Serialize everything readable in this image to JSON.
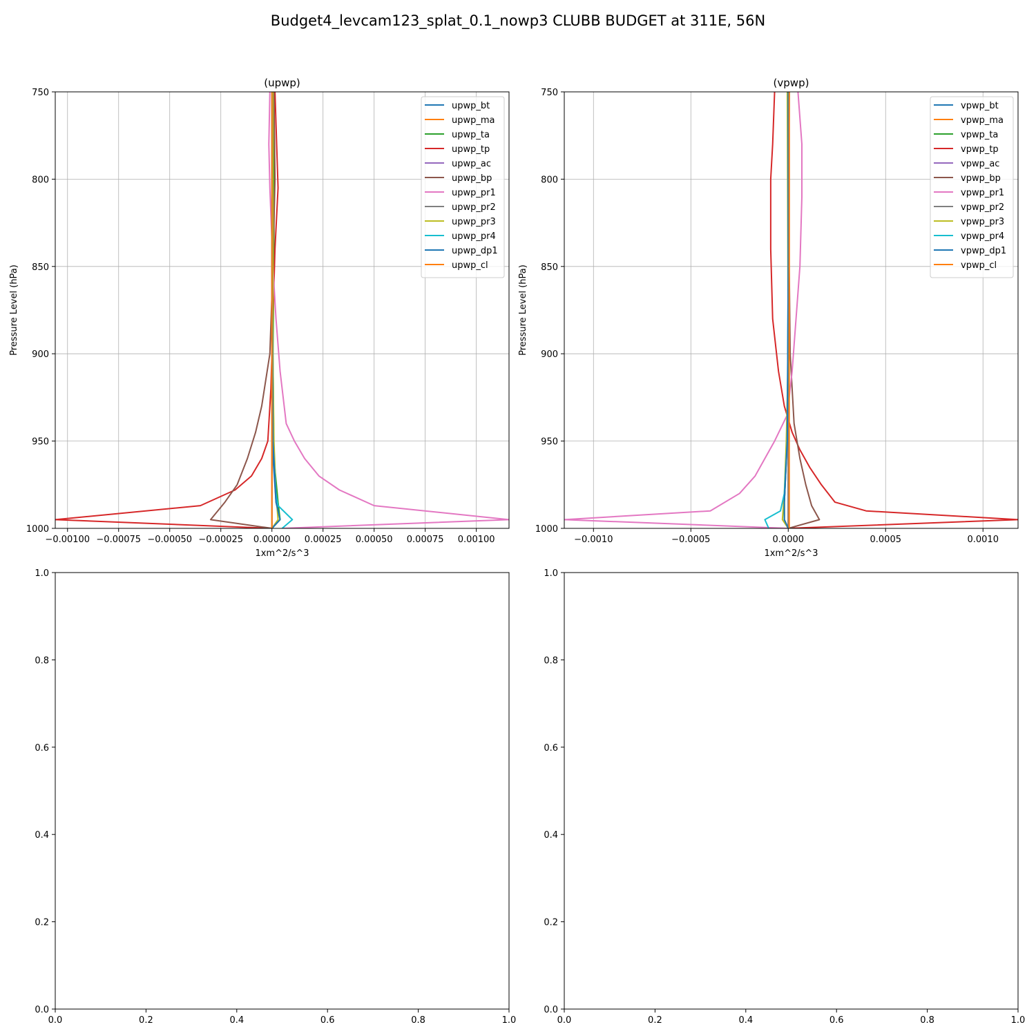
{
  "figure": {
    "title": "Budget4_levcam123_splat_0.1_nowp3 CLUBB BUDGET at 311E, 56N"
  },
  "chart_data": [
    {
      "type": "line",
      "title": "(upwp)",
      "xlabel": "1xm^2/s^3",
      "ylabel": "Pressure Level (hPa)",
      "xlim": [
        -0.00106,
        0.00116
      ],
      "ylim": [
        1000,
        750
      ],
      "x_ticks": [
        -0.001,
        -0.00075,
        -0.0005,
        -0.00025,
        0,
        0.00025,
        0.0005,
        0.00075,
        0.001
      ],
      "x_tick_labels": [
        "−0.00100",
        "−0.00075",
        "−0.00050",
        "−0.00025",
        "0.00000",
        "0.00025",
        "0.00050",
        "0.00075",
        "0.00100"
      ],
      "y_ticks": [
        750,
        800,
        850,
        900,
        950,
        1000
      ],
      "y_tick_labels": [
        "750",
        "800",
        "850",
        "900",
        "950",
        "1000"
      ],
      "grid": true,
      "legend_position": "top-right",
      "series": [
        {
          "name": "upwp_bt",
          "color": "#1f77b4",
          "points": [
            [
              1e-05,
              750
            ],
            [
              5e-06,
              850
            ],
            [
              0,
              900
            ],
            [
              0,
              950
            ],
            [
              2e-05,
              985
            ],
            [
              4e-05,
              995
            ],
            [
              0,
              1000
            ]
          ]
        },
        {
          "name": "upwp_ma",
          "color": "#ff7f0e",
          "points": [
            [
              0,
              750
            ],
            [
              0,
              1000
            ]
          ]
        },
        {
          "name": "upwp_ta",
          "color": "#2ca02c",
          "points": [
            [
              1e-05,
              750
            ],
            [
              1e-05,
              850
            ],
            [
              5e-06,
              900
            ],
            [
              1e-05,
              960
            ],
            [
              3e-05,
              985
            ],
            [
              4e-05,
              995
            ],
            [
              0,
              1000
            ]
          ]
        },
        {
          "name": "upwp_tp",
          "color": "#d62728",
          "points": [
            [
              1.5e-05,
              750
            ],
            [
              3e-05,
              805
            ],
            [
              1.5e-05,
              840
            ],
            [
              5e-06,
              880
            ],
            [
              -5e-06,
              920
            ],
            [
              -2e-05,
              950
            ],
            [
              -5e-05,
              960
            ],
            [
              -0.0001,
              970
            ],
            [
              -0.00018,
              978
            ],
            [
              -0.00035,
              987
            ],
            [
              -0.00106,
              995
            ],
            [
              0,
              1000
            ]
          ]
        },
        {
          "name": "upwp_ac",
          "color": "#9467bd",
          "points": [
            [
              0,
              750
            ],
            [
              0,
              1000
            ]
          ]
        },
        {
          "name": "upwp_bp",
          "color": "#8c564b",
          "points": [
            [
              1e-05,
              750
            ],
            [
              1.5e-05,
              800
            ],
            [
              5e-06,
              850
            ],
            [
              -1e-05,
              900
            ],
            [
              -5e-05,
              930
            ],
            [
              -8e-05,
              945
            ],
            [
              -0.00012,
              960
            ],
            [
              -0.00017,
              975
            ],
            [
              -0.00023,
              985
            ],
            [
              -0.0003,
              995
            ],
            [
              0,
              1000
            ]
          ]
        },
        {
          "name": "upwp_pr1",
          "color": "#e377c2",
          "points": [
            [
              -1e-05,
              750
            ],
            [
              -1.5e-05,
              780
            ],
            [
              -1e-05,
              805
            ],
            [
              5e-06,
              850
            ],
            [
              2e-05,
              880
            ],
            [
              4e-05,
              910
            ],
            [
              7e-05,
              940
            ],
            [
              0.00011,
              950
            ],
            [
              0.00016,
              960
            ],
            [
              0.00023,
              970
            ],
            [
              0.00033,
              978
            ],
            [
              0.0005,
              987
            ],
            [
              0.00116,
              995
            ],
            [
              5e-05,
              1000
            ]
          ]
        },
        {
          "name": "upwp_pr2",
          "color": "#7f7f7f",
          "points": [
            [
              0,
              750
            ],
            [
              0,
              1000
            ]
          ]
        },
        {
          "name": "upwp_pr3",
          "color": "#bcbd22",
          "points": [
            [
              5e-06,
              750
            ],
            [
              5e-06,
              900
            ],
            [
              1e-05,
              950
            ],
            [
              2e-05,
              980
            ],
            [
              3e-05,
              995
            ],
            [
              0,
              1000
            ]
          ]
        },
        {
          "name": "upwp_pr4",
          "color": "#17becf",
          "points": [
            [
              0,
              750
            ],
            [
              0,
              850
            ],
            [
              5e-06,
              950
            ],
            [
              2e-05,
              980
            ],
            [
              3e-05,
              987
            ],
            [
              0.0001,
              995
            ],
            [
              5e-05,
              1000
            ]
          ]
        },
        {
          "name": "upwp_dp1",
          "color": "#1f77b4",
          "points": [
            [
              0,
              750
            ],
            [
              0,
              850
            ],
            [
              5e-06,
              950
            ],
            [
              2e-05,
              985
            ],
            [
              4e-05,
              995
            ],
            [
              0,
              1000
            ]
          ]
        },
        {
          "name": "upwp_cl",
          "color": "#ff7f0e",
          "points": [
            [
              0,
              750
            ],
            [
              0,
              1000
            ]
          ]
        }
      ]
    },
    {
      "type": "line",
      "title": "(vpwp)",
      "xlabel": "1xm^2/s^3",
      "ylabel": "Pressure Level (hPa)",
      "xlim": [
        -0.00115,
        0.00118
      ],
      "ylim": [
        1000,
        750
      ],
      "x_ticks": [
        -0.001,
        -0.0005,
        0,
        0.0005,
        0.001
      ],
      "x_tick_labels": [
        "−0.0010",
        "−0.0005",
        "0.0000",
        "0.0005",
        "0.0010"
      ],
      "y_ticks": [
        750,
        800,
        850,
        900,
        950,
        1000
      ],
      "y_tick_labels": [
        "750",
        "800",
        "850",
        "900",
        "950",
        "1000"
      ],
      "grid": true,
      "legend_position": "top-right",
      "series": [
        {
          "name": "vpwp_bt",
          "color": "#1f77b4",
          "points": [
            [
              5e-06,
              750
            ],
            [
              0,
              900
            ],
            [
              -5e-06,
              950
            ],
            [
              -2e-05,
              985
            ],
            [
              -2e-05,
              995
            ],
            [
              0,
              1000
            ]
          ]
        },
        {
          "name": "vpwp_ma",
          "color": "#ff7f0e",
          "points": [
            [
              0,
              750
            ],
            [
              0,
              1000
            ]
          ]
        },
        {
          "name": "vpwp_ta",
          "color": "#2ca02c",
          "points": [
            [
              5e-06,
              750
            ],
            [
              0,
              900
            ],
            [
              -1e-05,
              960
            ],
            [
              -2e-05,
              985
            ],
            [
              -2e-05,
              995
            ],
            [
              0,
              1000
            ]
          ]
        },
        {
          "name": "vpwp_tp",
          "color": "#d62728",
          "points": [
            [
              -7e-05,
              750
            ],
            [
              -8e-05,
              780
            ],
            [
              -9e-05,
              800
            ],
            [
              -9e-05,
              840
            ],
            [
              -8e-05,
              880
            ],
            [
              -5e-05,
              910
            ],
            [
              -2e-05,
              930
            ],
            [
              2e-05,
              945
            ],
            [
              6e-05,
              955
            ],
            [
              0.00011,
              965
            ],
            [
              0.00017,
              975
            ],
            [
              0.00024,
              985
            ],
            [
              0.0004,
              990
            ],
            [
              0.00118,
              995
            ],
            [
              0,
              1000
            ]
          ]
        },
        {
          "name": "vpwp_ac",
          "color": "#9467bd",
          "points": [
            [
              0,
              750
            ],
            [
              0,
              1000
            ]
          ]
        },
        {
          "name": "vpwp_bp",
          "color": "#8c564b",
          "points": [
            [
              5e-06,
              750
            ],
            [
              5e-06,
              850
            ],
            [
              1e-05,
              900
            ],
            [
              3e-05,
              940
            ],
            [
              6e-05,
              960
            ],
            [
              9e-05,
              975
            ],
            [
              0.00012,
              987
            ],
            [
              0.00016,
              995
            ],
            [
              0,
              1000
            ]
          ]
        },
        {
          "name": "vpwp_pr1",
          "color": "#e377c2",
          "points": [
            [
              5e-05,
              750
            ],
            [
              7e-05,
              780
            ],
            [
              7e-05,
              810
            ],
            [
              6e-05,
              850
            ],
            [
              4e-05,
              880
            ],
            [
              2e-05,
              910
            ],
            [
              -5e-06,
              935
            ],
            [
              -7e-05,
              950
            ],
            [
              -0.00012,
              960
            ],
            [
              -0.00017,
              970
            ],
            [
              -0.00025,
              980
            ],
            [
              -0.0004,
              990
            ],
            [
              -0.00115,
              995
            ],
            [
              0,
              1000
            ]
          ]
        },
        {
          "name": "vpwp_pr2",
          "color": "#7f7f7f",
          "points": [
            [
              0,
              750
            ],
            [
              0,
              1000
            ]
          ]
        },
        {
          "name": "vpwp_pr3",
          "color": "#bcbd22",
          "points": [
            [
              -5e-06,
              750
            ],
            [
              0,
              900
            ],
            [
              -1e-05,
              950
            ],
            [
              -2e-05,
              980
            ],
            [
              -3e-05,
              995
            ],
            [
              0,
              1000
            ]
          ]
        },
        {
          "name": "vpwp_pr4",
          "color": "#17becf",
          "points": [
            [
              0,
              750
            ],
            [
              0,
              850
            ],
            [
              -5e-06,
              950
            ],
            [
              -2e-05,
              980
            ],
            [
              -4e-05,
              990
            ],
            [
              -0.00012,
              995
            ],
            [
              -0.0001,
              1000
            ]
          ]
        },
        {
          "name": "vpwp_dp1",
          "color": "#1f77b4",
          "points": [
            [
              0,
              750
            ],
            [
              0,
              850
            ],
            [
              -5e-06,
              950
            ],
            [
              -2e-05,
              985
            ],
            [
              -2e-05,
              995
            ],
            [
              0,
              1000
            ]
          ]
        },
        {
          "name": "vpwp_cl",
          "color": "#ff7f0e",
          "points": [
            [
              5e-06,
              750
            ],
            [
              5e-06,
              1000
            ]
          ]
        }
      ]
    },
    {
      "type": "line",
      "title": "",
      "xlim": [
        0,
        1
      ],
      "ylim": [
        0,
        1
      ],
      "x_tick_labels": [
        "0.0",
        "0.2",
        "0.4",
        "0.6",
        "0.8",
        "1.0"
      ],
      "y_tick_labels": [
        "0.0",
        "0.2",
        "0.4",
        "0.6",
        "0.8",
        "1.0"
      ],
      "grid": false,
      "series": []
    },
    {
      "type": "line",
      "title": "",
      "xlim": [
        0,
        1
      ],
      "ylim": [
        0,
        1
      ],
      "x_tick_labels": [
        "0.0",
        "0.2",
        "0.4",
        "0.6",
        "0.8",
        "1.0"
      ],
      "y_tick_labels": [
        "0.0",
        "0.2",
        "0.4",
        "0.6",
        "0.8",
        "1.0"
      ],
      "grid": false,
      "series": []
    }
  ]
}
